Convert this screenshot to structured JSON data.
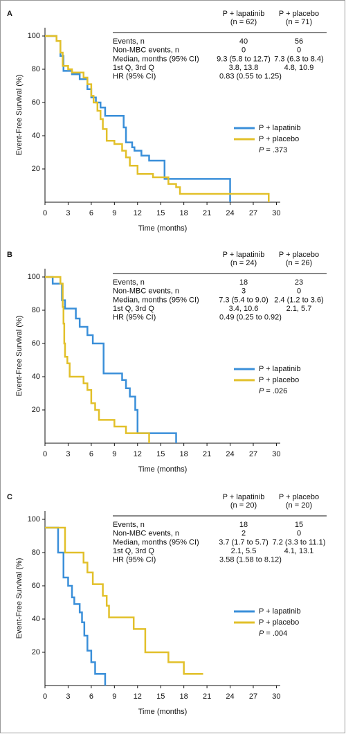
{
  "chart_data": [
    {
      "type": "line",
      "step": true,
      "panel": "A",
      "xlabel": "Time (months)",
      "ylabel": "Event-Free Survival (%)",
      "xlim": [
        0,
        30.5
      ],
      "ylim": [
        0,
        105
      ],
      "xticks": [
        0,
        3,
        6,
        9,
        12,
        15,
        18,
        21,
        24,
        27,
        30
      ],
      "yticks": [
        20,
        40,
        60,
        80,
        100
      ],
      "series": [
        {
          "name": "P + lapatinib",
          "color": "#3a8fd9",
          "x": [
            0,
            1.5,
            2,
            2.4,
            3.5,
            4.5,
            5.5,
            6,
            6.6,
            7.2,
            7.8,
            10.2,
            10.5,
            11.3,
            11.6,
            12.5,
            13.5,
            15.5,
            24
          ],
          "values": [
            100,
            97,
            88,
            79,
            77,
            74,
            68,
            63,
            60,
            57,
            52,
            45,
            36,
            33,
            31,
            28,
            25,
            14,
            0
          ]
        },
        {
          "name": "P + placebo",
          "color": "#e2c02a",
          "x": [
            0,
            1.5,
            2,
            2.3,
            3,
            3.5,
            5,
            5.5,
            6,
            6.3,
            6.8,
            7.2,
            7.5,
            8,
            9,
            10,
            10.5,
            11,
            12,
            14,
            16,
            17,
            17.5,
            29
          ],
          "values": [
            100,
            97,
            90,
            82,
            80,
            78,
            75,
            71,
            64,
            60,
            55,
            50,
            44,
            37,
            35,
            31,
            27,
            22,
            17,
            15,
            11,
            9,
            5,
            0
          ]
        }
      ],
      "p_label": "P",
      "p_value": "= .373",
      "table": {
        "headers": [
          [
            "P + lapatinib",
            "(n = 62)"
          ],
          [
            "P + placebo",
            "(n = 71)"
          ]
        ],
        "rows": [
          [
            "Events, n",
            "40",
            "56"
          ],
          [
            "Non-MBC events, n",
            "0",
            "0"
          ],
          [
            "Median, months (95% CI)",
            "9.3 (5.8 to 12.7)",
            "7.3 (6.3 to 8.4)"
          ],
          [
            "1st Q, 3rd Q",
            "3.8, 13.8",
            "4.8, 10.9"
          ],
          [
            "HR (95% CI)",
            "0.83 (0.55 to 1.25)"
          ]
        ]
      }
    },
    {
      "type": "line",
      "step": true,
      "panel": "B",
      "xlabel": "Time (months)",
      "ylabel": "Event-Free Survival (%)",
      "xlim": [
        0,
        30.5
      ],
      "ylim": [
        0,
        105
      ],
      "xticks": [
        0,
        3,
        6,
        9,
        12,
        15,
        18,
        21,
        24,
        27,
        30
      ],
      "yticks": [
        20,
        40,
        60,
        80,
        100
      ],
      "series": [
        {
          "name": "P + lapatinib",
          "color": "#3a8fd9",
          "x": [
            0,
            1,
            2.2,
            2.6,
            4,
            4.5,
            5.5,
            6.2,
            7.6,
            10,
            10.5,
            11,
            11.7,
            12,
            17
          ],
          "values": [
            100,
            96,
            86,
            81,
            75,
            70,
            65,
            60,
            42,
            38,
            33,
            28,
            20,
            6,
            0
          ]
        },
        {
          "name": "P + placebo",
          "color": "#e2c02a",
          "x": [
            0,
            2,
            2.3,
            2.4,
            2.5,
            2.6,
            2.9,
            3.2,
            5,
            5.5,
            6,
            6.5,
            7,
            9,
            10.5,
            13.5
          ],
          "values": [
            100,
            96,
            82,
            72,
            60,
            52,
            48,
            40,
            36,
            32,
            24,
            20,
            14,
            10,
            6,
            0
          ]
        }
      ],
      "p_label": "P",
      "p_value": "= .026",
      "table": {
        "headers": [
          [
            "P + lapatinib",
            "(n = 24)"
          ],
          [
            "P + placebo",
            "(n = 26)"
          ]
        ],
        "rows": [
          [
            "Events, n",
            "18",
            "23"
          ],
          [
            "Non-MBC events, n",
            "3",
            "0"
          ],
          [
            "Median, months (95% CI)",
            "7.3 (5.4 to 9.0)",
            "2.4 (1.2 to 3.6)"
          ],
          [
            "1st Q, 3rd Q",
            "3.4, 10.6",
            "2.1, 5.7"
          ],
          [
            "HR (95% CI)",
            "0.49 (0.25 to 0.92)"
          ]
        ]
      }
    },
    {
      "type": "line",
      "step": true,
      "panel": "C",
      "xlabel": "Time (months)",
      "ylabel": "Event-Free Survival (%)",
      "xlim": [
        0,
        30.5
      ],
      "ylim": [
        0,
        105
      ],
      "xticks": [
        0,
        3,
        6,
        9,
        12,
        15,
        18,
        21,
        24,
        27,
        30
      ],
      "yticks": [
        20,
        40,
        60,
        80,
        100
      ],
      "series": [
        {
          "name": "P + lapatinib",
          "color": "#3a8fd9",
          "x": [
            0,
            1.7,
            2.4,
            3,
            3.5,
            3.8,
            4.5,
            4.8,
            5.1,
            5.5,
            6,
            6.5,
            7.8
          ],
          "values": [
            95,
            80,
            65,
            60,
            53,
            49,
            44,
            38,
            30,
            21,
            14,
            7,
            0
          ]
        },
        {
          "name": "P + placebo",
          "color": "#e2c02a",
          "x": [
            0,
            2.6,
            5,
            5.5,
            6.2,
            7.5,
            8,
            8.3,
            11.5,
            13,
            16,
            18,
            20.5
          ],
          "values": [
            95,
            80,
            74,
            68,
            61,
            54,
            48,
            41,
            34,
            20,
            14,
            7,
            7
          ]
        }
      ],
      "p_label": "P",
      "p_value": "= .004",
      "table": {
        "headers": [
          [
            "P + lapatinib",
            "(n = 20)"
          ],
          [
            "P + placebo",
            "(n = 20)"
          ]
        ],
        "rows": [
          [
            "Events, n",
            "18",
            "15"
          ],
          [
            "Non-MBC events, n",
            "2",
            "0"
          ],
          [
            "Median, months (95% CI)",
            "3.7 (1.7 to 5.7)",
            "7.2 (3.3 to 11.1)"
          ],
          [
            "1st Q, 3rd Q",
            "2.1, 5.5",
            "4.1, 13.1"
          ],
          [
            "HR (95% CI)",
            "3.58 (1.58 to 8.12)"
          ]
        ]
      }
    }
  ]
}
